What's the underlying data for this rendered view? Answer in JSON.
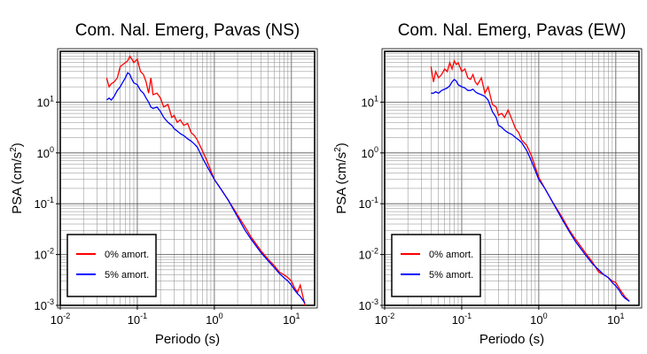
{
  "chart_data": [
    {
      "type": "line",
      "title": "Com. Nal. Emerg, Pavas (NS)",
      "xlabel": "Periodo (s)",
      "ylabel_main": "PSA (cm/s",
      "ylabel_sup": "2",
      "ylabel_tail": ")",
      "xscale": "log",
      "yscale": "log",
      "xlim": [
        0.01,
        20
      ],
      "ylim": [
        0.001,
        100
      ],
      "grid": true,
      "legend_position": "bottom-left",
      "x_ticks": [
        {
          "base": "10",
          "exp": "-2",
          "v": 0.01
        },
        {
          "base": "10",
          "exp": "-1",
          "v": 0.1
        },
        {
          "base": "10",
          "exp": "0",
          "v": 1
        },
        {
          "base": "10",
          "exp": "1",
          "v": 10
        }
      ],
      "y_ticks": [
        {
          "base": "10",
          "exp": "-3",
          "v": 0.001
        },
        {
          "base": "10",
          "exp": "-2",
          "v": 0.01
        },
        {
          "base": "10",
          "exp": "-1",
          "v": 0.1
        },
        {
          "base": "10",
          "exp": "0",
          "v": 1
        },
        {
          "base": "10",
          "exp": "1",
          "v": 10
        }
      ],
      "series": [
        {
          "name": "0% amort.",
          "color": "#ff0000",
          "x": [
            0.04,
            0.043,
            0.046,
            0.05,
            0.055,
            0.06,
            0.065,
            0.07,
            0.075,
            0.08,
            0.085,
            0.09,
            0.1,
            0.11,
            0.12,
            0.13,
            0.14,
            0.15,
            0.16,
            0.18,
            0.2,
            0.22,
            0.25,
            0.28,
            0.3,
            0.33,
            0.36,
            0.4,
            0.45,
            0.5,
            0.55,
            0.6,
            0.7,
            0.8,
            1.0,
            1.2,
            1.5,
            2.0,
            2.5,
            3.0,
            4.0,
            5.0,
            6.0,
            7.0,
            8.0,
            9.0,
            10.0,
            11.0,
            12.0,
            13.0,
            15.0
          ],
          "y": [
            30,
            20,
            23,
            25,
            30,
            50,
            55,
            60,
            65,
            80,
            70,
            60,
            70,
            40,
            35,
            25,
            15,
            30,
            14,
            15,
            12,
            8,
            9,
            5,
            5.5,
            4,
            4.5,
            3.5,
            3.8,
            2.5,
            2.2,
            1.8,
            1.1,
            0.7,
            0.3,
            0.2,
            0.12,
            0.06,
            0.035,
            0.022,
            0.012,
            0.008,
            0.006,
            0.0045,
            0.004,
            0.0035,
            0.003,
            0.0022,
            0.0018,
            0.0025,
            0.001
          ]
        },
        {
          "name": "5% amort.",
          "color": "#0000ff",
          "x": [
            0.04,
            0.043,
            0.046,
            0.05,
            0.055,
            0.06,
            0.065,
            0.07,
            0.075,
            0.08,
            0.085,
            0.09,
            0.1,
            0.11,
            0.12,
            0.13,
            0.14,
            0.15,
            0.16,
            0.18,
            0.2,
            0.22,
            0.25,
            0.28,
            0.3,
            0.33,
            0.36,
            0.4,
            0.45,
            0.5,
            0.55,
            0.6,
            0.7,
            0.8,
            1.0,
            1.2,
            1.5,
            2.0,
            2.5,
            3.0,
            4.0,
            5.0,
            6.0,
            7.0,
            8.0,
            9.0,
            10.0,
            11.0,
            12.0,
            13.0,
            15.0
          ],
          "y": [
            11,
            12,
            11,
            13,
            17,
            20,
            25,
            30,
            38,
            35,
            28,
            24,
            22,
            17,
            15,
            12,
            10,
            8,
            7.5,
            8,
            6.5,
            5,
            4,
            3.5,
            3,
            2.7,
            2.4,
            2.2,
            1.9,
            1.7,
            1.5,
            1.3,
            0.8,
            0.55,
            0.3,
            0.2,
            0.12,
            0.055,
            0.03,
            0.02,
            0.011,
            0.0075,
            0.0055,
            0.0042,
            0.0035,
            0.003,
            0.0025,
            0.002,
            0.0017,
            0.0015,
            0.0011
          ]
        }
      ]
    },
    {
      "type": "line",
      "title": "Com. Nal. Emerg, Pavas (EW)",
      "xlabel": "Periodo (s)",
      "ylabel_main": "PSA (cm/s",
      "ylabel_sup": "2",
      "ylabel_tail": ")",
      "xscale": "log",
      "yscale": "log",
      "xlim": [
        0.01,
        20
      ],
      "ylim": [
        0.001,
        100
      ],
      "grid": true,
      "legend_position": "bottom-left",
      "x_ticks": [
        {
          "base": "10",
          "exp": "-2",
          "v": 0.01
        },
        {
          "base": "10",
          "exp": "-1",
          "v": 0.1
        },
        {
          "base": "10",
          "exp": "0",
          "v": 1
        },
        {
          "base": "10",
          "exp": "1",
          "v": 10
        }
      ],
      "y_ticks": [
        {
          "base": "10",
          "exp": "-3",
          "v": 0.001
        },
        {
          "base": "10",
          "exp": "-2",
          "v": 0.01
        },
        {
          "base": "10",
          "exp": "-1",
          "v": 0.1
        },
        {
          "base": "10",
          "exp": "0",
          "v": 1
        },
        {
          "base": "10",
          "exp": "1",
          "v": 10
        }
      ],
      "series": [
        {
          "name": "0% amort.",
          "color": "#ff0000",
          "x": [
            0.04,
            0.043,
            0.046,
            0.05,
            0.055,
            0.06,
            0.065,
            0.07,
            0.075,
            0.08,
            0.085,
            0.09,
            0.1,
            0.11,
            0.12,
            0.13,
            0.14,
            0.15,
            0.16,
            0.18,
            0.2,
            0.22,
            0.25,
            0.28,
            0.3,
            0.33,
            0.36,
            0.4,
            0.45,
            0.5,
            0.55,
            0.6,
            0.7,
            0.8,
            1.0,
            1.2,
            1.5,
            2.0,
            2.5,
            3.0,
            4.0,
            5.0,
            6.0,
            7.0,
            8.0,
            9.0,
            10.0,
            11.0,
            12.0,
            13.0,
            15.0
          ],
          "y": [
            50,
            25,
            40,
            30,
            35,
            45,
            40,
            60,
            45,
            65,
            55,
            60,
            40,
            45,
            30,
            28,
            35,
            25,
            22,
            30,
            15,
            20,
            9,
            8,
            5.5,
            6,
            5,
            7,
            4.5,
            3,
            2.5,
            1.8,
            1.4,
            0.9,
            0.33,
            0.2,
            0.11,
            0.055,
            0.03,
            0.02,
            0.011,
            0.007,
            0.0045,
            0.004,
            0.0035,
            0.003,
            0.0028,
            0.0022,
            0.0018,
            0.0015,
            0.0012
          ]
        },
        {
          "name": "5% amort.",
          "color": "#0000ff",
          "x": [
            0.04,
            0.043,
            0.046,
            0.05,
            0.055,
            0.06,
            0.065,
            0.07,
            0.075,
            0.08,
            0.085,
            0.09,
            0.1,
            0.11,
            0.12,
            0.13,
            0.14,
            0.15,
            0.16,
            0.18,
            0.2,
            0.22,
            0.25,
            0.28,
            0.3,
            0.33,
            0.36,
            0.4,
            0.45,
            0.5,
            0.55,
            0.6,
            0.7,
            0.8,
            1.0,
            1.2,
            1.5,
            2.0,
            2.5,
            3.0,
            4.0,
            5.0,
            6.0,
            7.0,
            8.0,
            9.0,
            10.0,
            11.0,
            12.0,
            13.0,
            15.0
          ],
          "y": [
            15,
            15,
            16,
            15,
            17,
            18,
            19,
            21,
            25,
            28,
            26,
            22,
            20,
            19,
            17,
            17,
            18,
            16,
            15,
            14,
            13,
            11,
            6.5,
            5,
            3.5,
            3.2,
            2.8,
            2.5,
            2.3,
            2.0,
            1.8,
            1.6,
            1.1,
            0.7,
            0.3,
            0.2,
            0.11,
            0.05,
            0.028,
            0.018,
            0.01,
            0.0065,
            0.005,
            0.004,
            0.0035,
            0.0028,
            0.0024,
            0.002,
            0.0016,
            0.0014,
            0.0012
          ]
        }
      ]
    }
  ]
}
